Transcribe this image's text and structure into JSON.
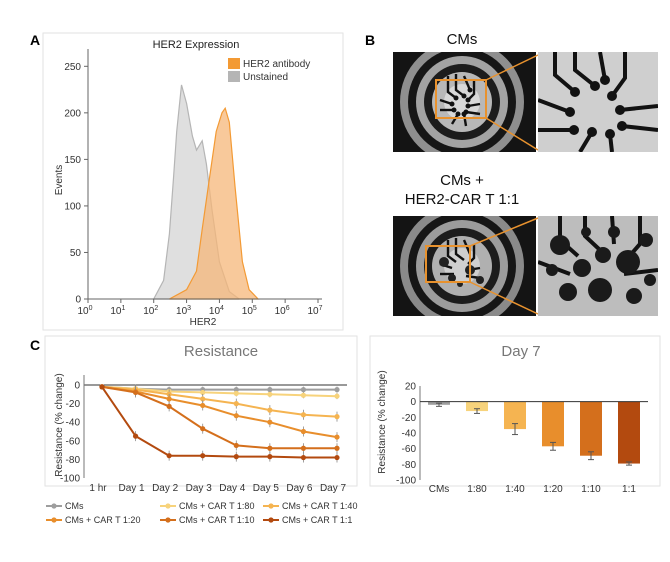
{
  "panels": {
    "a": "A",
    "b": "B",
    "c": "C"
  },
  "colors": {
    "cms": "#9e9e9e",
    "r80": "#f7d37c",
    "r40": "#f5b451",
    "r20": "#e88e2c",
    "r10": "#d46f1c",
    "r1": "#b34a0f",
    "her2_fill": "#f6b77a",
    "her2_stroke": "#f39a34",
    "unstained_fill": "#d4d4d4",
    "unstained_stroke": "#b5b5b5",
    "roi": "#e8922e"
  },
  "hist": {
    "title": "HER2 Expression",
    "xlabel": "HER2",
    "ylabel": "Events",
    "legend": [
      "HER2 antibody",
      "Unstained"
    ],
    "y_ticks": [
      "0",
      "50",
      "100",
      "150",
      "200",
      "250"
    ],
    "x_exp": [
      "0",
      "1",
      "2",
      "3",
      "4",
      "5",
      "6",
      "7"
    ],
    "chart_data": {
      "type": "area",
      "title": "HER2 Expression",
      "xlabel": "HER2",
      "ylabel": "Events",
      "x_scale": "log",
      "xlim": [
        1,
        10000000
      ],
      "ylim": [
        0,
        260
      ],
      "legend": "top-right",
      "series": [
        {
          "name": "HER2 antibody",
          "x": [
            300,
            1000,
            2000,
            3000,
            5000,
            8000,
            12000,
            15000,
            20000,
            30000,
            50000,
            80000,
            150000
          ],
          "y": [
            0,
            10,
            30,
            75,
            130,
            180,
            200,
            205,
            190,
            120,
            40,
            10,
            0
          ]
        },
        {
          "name": "Unstained",
          "x": [
            100,
            200,
            300,
            400,
            500,
            700,
            1000,
            1500,
            2000,
            3000,
            4000,
            6000,
            10000,
            20000,
            40000
          ],
          "y": [
            0,
            20,
            70,
            130,
            180,
            230,
            210,
            175,
            160,
            170,
            145,
            95,
            40,
            8,
            0
          ]
        }
      ]
    }
  },
  "micro": {
    "top_label": "CMs",
    "bottom_line1": "CMs +",
    "bottom_line2": "HER2-CAR T 1:1"
  },
  "resistance": {
    "title": "Resistance",
    "ylabel": "Resistance (% change)",
    "y_ticks": [
      "0",
      "-20",
      "-40",
      "-60",
      "-80",
      "-100"
    ],
    "chart_data": {
      "type": "line",
      "title": "Resistance",
      "ylabel": "Resistance (% change)",
      "categories": [
        "1 hr",
        "Day 1",
        "Day 2",
        "Day 3",
        "Day 4",
        "Day 5",
        "Day 6",
        "Day 7"
      ],
      "ylim": [
        -100,
        0
      ],
      "series": [
        {
          "name": "CMs",
          "values": [
            -2,
            -4,
            -5,
            -5,
            -5,
            -5,
            -5,
            -5
          ]
        },
        {
          "name": "CMs + CAR T 1:80",
          "values": [
            -2,
            -4,
            -7,
            -8,
            -9,
            -10,
            -11,
            -12
          ]
        },
        {
          "name": "CMs + CAR T 1:40",
          "values": [
            -2,
            -5,
            -10,
            -15,
            -20,
            -27,
            -32,
            -34
          ]
        },
        {
          "name": "CMs + CAR T 1:20",
          "values": [
            -2,
            -7,
            -15,
            -22,
            -33,
            -40,
            -50,
            -56
          ]
        },
        {
          "name": "CMs + CAR T 1:10",
          "values": [
            -2,
            -8,
            -23,
            -47,
            -65,
            -68,
            -68,
            -68
          ]
        },
        {
          "name": "CMs + CAR T 1:1",
          "values": [
            -2,
            -55,
            -76,
            -76,
            -77,
            -77,
            -78,
            -78
          ]
        }
      ]
    }
  },
  "day7": {
    "title": "Day 7",
    "ylabel": "Resistance (% change)",
    "y_ticks": [
      "20",
      "0",
      "-20",
      "-40",
      "-60",
      "-80",
      "-100"
    ],
    "chart_data": {
      "type": "bar",
      "title": "Day 7",
      "ylabel": "Resistance (% change)",
      "categories": [
        "CMs",
        "1:80",
        "1:40",
        "1:20",
        "1:10",
        "1:1"
      ],
      "values": [
        -4,
        -12,
        -35,
        -57,
        -69,
        -79
      ],
      "errors": [
        2,
        3,
        7,
        5,
        5,
        2
      ],
      "ylim": [
        -100,
        20
      ]
    }
  },
  "legend": [
    {
      "label": "CMs",
      "color_key": "cms"
    },
    {
      "label": "CMs + CAR T 1:80",
      "color_key": "r80"
    },
    {
      "label": "CMs + CAR T 1:40",
      "color_key": "r40"
    },
    {
      "label": "CMs + CAR T 1:20",
      "color_key": "r20"
    },
    {
      "label": "CMs + CAR T 1:10",
      "color_key": "r10"
    },
    {
      "label": "CMs + CAR T 1:1",
      "color_key": "r1"
    }
  ]
}
